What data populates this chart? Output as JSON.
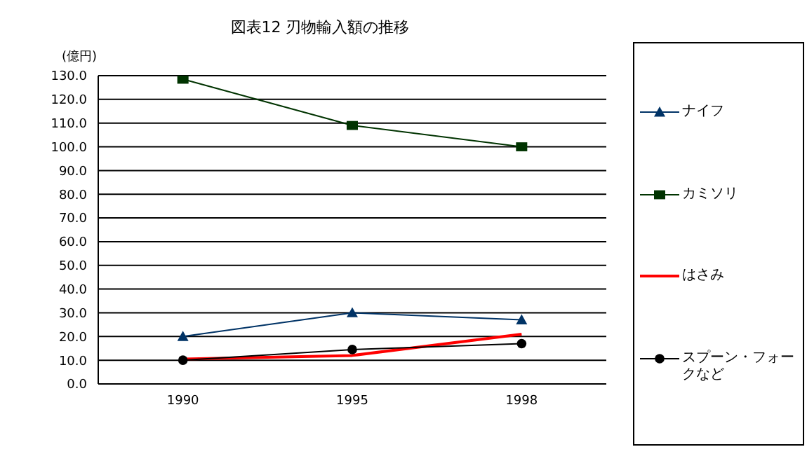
{
  "chart_data": {
    "type": "line",
    "title": "図表12 刃物輸入額の推移",
    "ylabel": "(億円)",
    "categories": [
      "1990",
      "1995",
      "1998"
    ],
    "series": [
      {
        "name": "ナイフ",
        "color": "#003366",
        "marker": "triangle",
        "values": [
          20,
          30,
          27
        ]
      },
      {
        "name": "カミソリ",
        "color": "#003300",
        "marker": "square",
        "values": [
          128.5,
          109,
          100
        ]
      },
      {
        "name": "はさみ",
        "color": "#ff0000",
        "marker": "none",
        "values": [
          10.5,
          12,
          21
        ]
      },
      {
        "name": "スプーン・フォークなど",
        "color": "#000000",
        "marker": "circle",
        "values": [
          10,
          14.5,
          17
        ]
      }
    ],
    "ylim": [
      0,
      130
    ],
    "yticks": [
      {
        "value": 0,
        "label": "0.0"
      },
      {
        "value": 10,
        "label": "10.0"
      },
      {
        "value": 20,
        "label": "20.0"
      },
      {
        "value": 30,
        "label": "30.0"
      },
      {
        "value": 40,
        "label": "40.0"
      },
      {
        "value": 50,
        "label": "50.0"
      },
      {
        "value": 60,
        "label": "60.0"
      },
      {
        "value": 70,
        "label": "70.0"
      },
      {
        "value": 80,
        "label": "80.0"
      },
      {
        "value": 90,
        "label": "90.0"
      },
      {
        "value": 100,
        "label": "100.0"
      },
      {
        "value": 110,
        "label": "110.0"
      },
      {
        "value": 120,
        "label": "120.0"
      },
      {
        "value": 130,
        "label": "130.0"
      }
    ],
    "grid": "y",
    "legend": "right"
  }
}
